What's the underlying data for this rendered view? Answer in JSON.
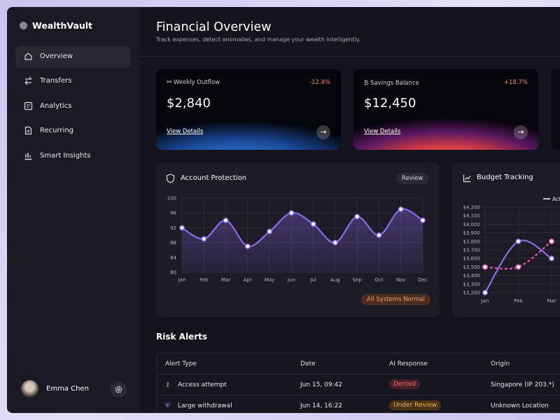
{
  "app": {
    "brand": "WealthVault"
  },
  "nav": [
    "Overview",
    "Transfers",
    "Analytics",
    "Recurring",
    "Smart Insights"
  ],
  "user": {
    "name": "Emma Chen"
  },
  "header": {
    "title": "Financial Overview",
    "subtitle": "Track expenses, detect anomalies, and manage your wealth intelligently."
  },
  "cards": [
    {
      "label": "Weekly Outflow",
      "change": "-12.4%",
      "amount": "$2,840",
      "link": "View Details"
    },
    {
      "label": "Savings Balance",
      "change": "+18.7%",
      "amount": "$12,450",
      "link": "View Details"
    }
  ],
  "protection": {
    "button": "Review",
    "status": "All Systems Normal"
  },
  "chart_data": [
    {
      "type": "line",
      "title": "Account Protection",
      "categories": [
        "Jan",
        "Feb",
        "Mar",
        "Apr",
        "May",
        "Jun",
        "Jul",
        "Aug",
        "Sep",
        "Oct",
        "Nov",
        "Dec"
      ],
      "values": [
        92,
        89,
        94,
        87,
        91,
        96,
        93,
        88,
        95,
        90,
        97,
        94
      ],
      "color": "#8b6cf0",
      "ylim": [
        80,
        100
      ],
      "yticks": [
        80,
        84,
        88,
        92,
        96,
        100
      ],
      "grid": true
    },
    {
      "type": "line",
      "title": "Budget Tracking",
      "categories": [
        "Jan",
        "Feb",
        "Mar"
      ],
      "series": [
        {
          "name": "Actual",
          "color": "#8b6cf0",
          "values": [
            3200,
            3800,
            3600
          ]
        },
        {
          "color": "#e455a8",
          "dashed": true,
          "values": [
            3500,
            3500,
            3800
          ]
        }
      ],
      "ylim": [
        3200,
        4200
      ],
      "yticks": [
        {
          "value": 3200,
          "label": "$3,200"
        },
        {
          "value": 3300,
          "label": "$3,300"
        },
        {
          "value": 3400,
          "label": "$3,400"
        },
        {
          "value": 3500,
          "label": "$3,500"
        },
        {
          "value": 3600,
          "label": "$3,600"
        },
        {
          "value": 3700,
          "label": "$3,700"
        },
        {
          "value": 3800,
          "label": "$3,800"
        },
        {
          "value": 3900,
          "label": "$3,900"
        },
        {
          "value": 4000,
          "label": "$4,000"
        },
        {
          "value": 4100,
          "label": "$4,100"
        },
        {
          "value": 4200,
          "label": "$4,200"
        }
      ],
      "grid": true
    }
  ],
  "risk": {
    "title": "Risk Alerts",
    "columns": [
      "Alert Type",
      "Date",
      "AI Response",
      "Origin"
    ],
    "rows": [
      [
        "Access attempt",
        "Jun 15, 09:42",
        "Denied",
        "Singapore (IP 203.*)"
      ],
      [
        "Large withdrawal",
        "Jun 14, 16:22",
        "Under Review",
        "Unknown Location"
      ]
    ]
  }
}
